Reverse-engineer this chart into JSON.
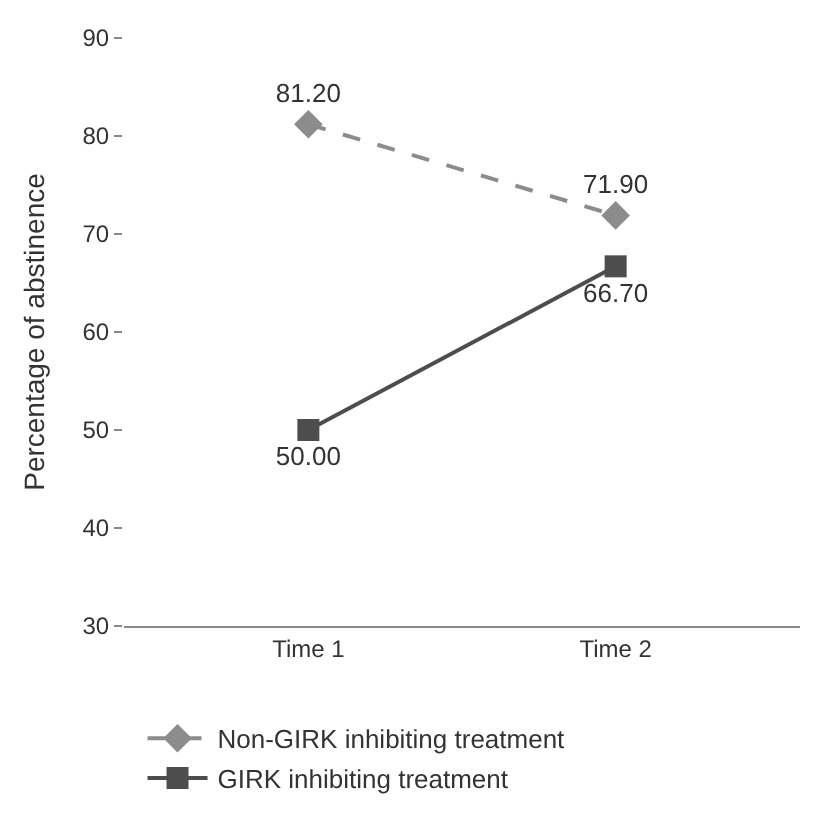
{
  "chart_data": {
    "type": "line",
    "ylabel": "Percentage of abstinence",
    "categories": [
      "Time 1",
      "Time 2"
    ],
    "series": [
      {
        "name": "Non-GIRK inhibiting treatment",
        "color": "#8c8c8c",
        "values": [
          81.2,
          71.9
        ],
        "value_labels": [
          "81.20",
          "71.90"
        ],
        "marker": "diamond",
        "line_style": "dashed"
      },
      {
        "name": "GIRK inhibiting treatment",
        "color": "#4d4d4d",
        "values": [
          50.0,
          66.7
        ],
        "value_labels": [
          "50.00",
          "66.70"
        ],
        "marker": "square",
        "line_style": "solid"
      }
    ],
    "ylim": [
      30,
      90
    ],
    "yticks": [
      30,
      40,
      50,
      60,
      70,
      80,
      90
    ],
    "legend": "bottom"
  }
}
